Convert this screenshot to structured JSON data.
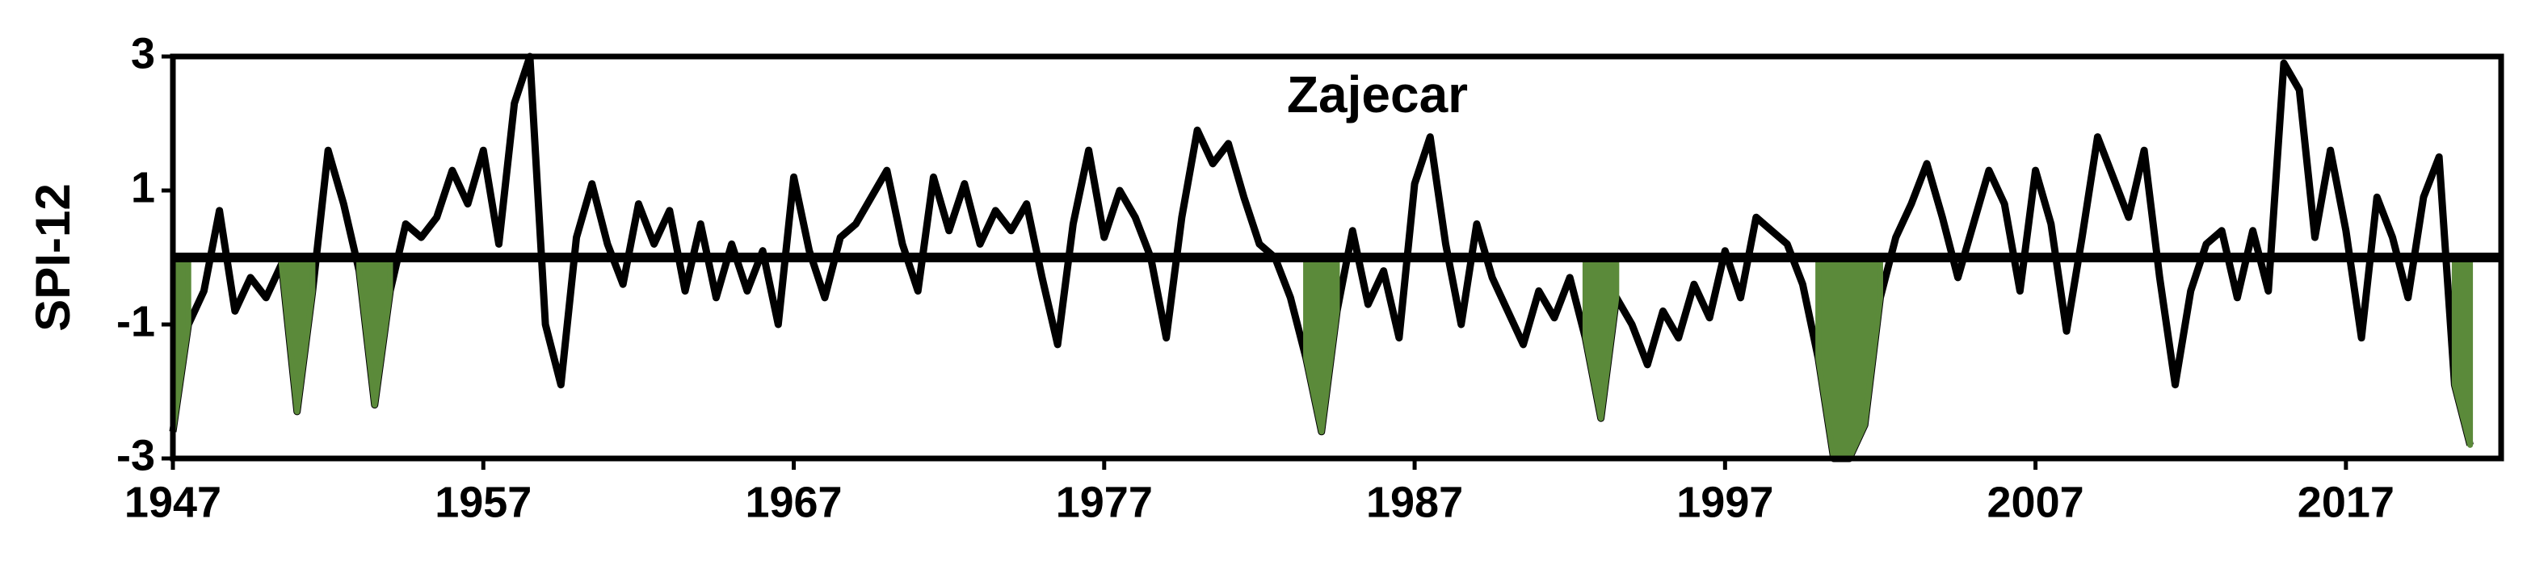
{
  "chart_data": {
    "type": "line",
    "title": "Zajecar",
    "ylabel": "SPI-12",
    "xlim": [
      1947,
      2022
    ],
    "xticks": [
      1947,
      1957,
      1967,
      1977,
      1987,
      1997,
      2007,
      2017
    ],
    "ylim": [
      -3,
      3
    ],
    "yticks": [
      -3,
      -1,
      1,
      3
    ],
    "hline": 0,
    "x": [
      1947,
      1947.5,
      1948,
      1948.5,
      1949,
      1949.5,
      1950,
      1950.5,
      1951,
      1951.5,
      1952,
      1952.5,
      1953,
      1953.5,
      1954,
      1954.5,
      1955,
      1955.5,
      1956,
      1956.5,
      1957,
      1957.5,
      1958,
      1958.5,
      1959,
      1959.5,
      1960,
      1960.5,
      1961,
      1961.5,
      1962,
      1962.5,
      1963,
      1963.5,
      1964,
      1964.5,
      1965,
      1965.5,
      1966,
      1966.5,
      1967,
      1967.5,
      1968,
      1968.5,
      1969,
      1969.5,
      1970,
      1970.5,
      1971,
      1971.5,
      1972,
      1972.5,
      1973,
      1973.5,
      1974,
      1974.5,
      1975,
      1975.5,
      1976,
      1976.5,
      1977,
      1977.5,
      1978,
      1978.5,
      1979,
      1979.5,
      1980,
      1980.5,
      1981,
      1981.5,
      1982,
      1982.5,
      1983,
      1983.5,
      1984,
      1984.5,
      1985,
      1985.5,
      1986,
      1986.5,
      1987,
      1987.5,
      1988,
      1988.5,
      1989,
      1989.5,
      1990,
      1990.5,
      1991,
      1991.5,
      1992,
      1992.5,
      1993,
      1993.5,
      1994,
      1994.5,
      1995,
      1995.5,
      1996,
      1996.5,
      1997,
      1997.5,
      1998,
      1998.5,
      1999,
      1999.5,
      2000,
      2000.5,
      2001,
      2001.5,
      2002,
      2002.5,
      2003,
      2003.5,
      2004,
      2004.5,
      2005,
      2005.5,
      2006,
      2006.5,
      2007,
      2007.5,
      2008,
      2008.5,
      2009,
      2009.5,
      2010,
      2010.5,
      2011,
      2011.5,
      2012,
      2012.5,
      2013,
      2013.5,
      2014,
      2014.5,
      2015,
      2015.5,
      2016,
      2016.5,
      2017,
      2017.5,
      2018,
      2018.5,
      2019,
      2019.5,
      2020,
      2020.5,
      2021
    ],
    "series": [
      {
        "color": "#000000",
        "values": [
          -2.6,
          -1.0,
          -0.5,
          0.7,
          -0.8,
          -0.3,
          -0.6,
          -0.1,
          -2.3,
          -0.5,
          1.6,
          0.8,
          -0.2,
          -2.2,
          -0.5,
          0.5,
          0.3,
          0.6,
          1.3,
          0.8,
          1.6,
          0.2,
          2.3,
          3.0,
          -1.0,
          -1.9,
          0.3,
          1.1,
          0.2,
          -0.4,
          0.8,
          0.2,
          0.7,
          -0.5,
          0.5,
          -0.6,
          0.2,
          -0.5,
          0.1,
          -1.0,
          1.2,
          0.1,
          -0.6,
          0.3,
          0.5,
          0.9,
          1.3,
          0.2,
          -0.5,
          1.2,
          0.4,
          1.1,
          0.2,
          0.7,
          0.4,
          0.8,
          -0.3,
          -1.3,
          0.5,
          1.6,
          0.3,
          1.0,
          0.6,
          0.0,
          -1.2,
          0.6,
          1.9,
          1.4,
          1.7,
          0.9,
          0.2,
          0.0,
          -0.6,
          -1.5,
          -2.6,
          -0.8,
          0.4,
          -0.7,
          -0.2,
          -1.2,
          1.1,
          1.8,
          0.2,
          -1.0,
          0.5,
          -0.3,
          -0.8,
          -1.3,
          -0.5,
          -0.9,
          -0.3,
          -1.2,
          -2.4,
          -0.6,
          -1.0,
          -1.6,
          -0.8,
          -1.2,
          -0.4,
          -0.9,
          0.1,
          -0.6,
          0.6,
          0.4,
          0.2,
          -0.4,
          -1.5,
          -3.0,
          -3.0,
          -2.5,
          -0.6,
          0.3,
          0.8,
          1.4,
          0.6,
          -0.3,
          0.5,
          1.3,
          0.8,
          -0.5,
          1.3,
          0.5,
          -1.1,
          0.3,
          1.8,
          1.2,
          0.6,
          1.6,
          -0.3,
          -1.9,
          -0.5,
          0.2,
          0.4,
          -0.6,
          0.4,
          -0.5,
          2.9,
          2.5,
          0.3,
          1.6,
          0.4,
          -1.2,
          0.9,
          0.3,
          -0.6,
          0.9,
          1.5,
          -1.9,
          -2.8
        ]
      },
      {
        "color": "#5b8a3a",
        "values": [
          -2.6,
          -1.0,
          null,
          null,
          null,
          null,
          null,
          -0.1,
          -2.3,
          -0.5,
          null,
          null,
          -0.2,
          -2.2,
          -0.5,
          null,
          null,
          null,
          null,
          null,
          null,
          null,
          null,
          null,
          null,
          null,
          null,
          null,
          null,
          null,
          null,
          null,
          null,
          null,
          null,
          null,
          null,
          null,
          null,
          null,
          null,
          null,
          null,
          null,
          null,
          null,
          null,
          null,
          null,
          null,
          null,
          null,
          null,
          null,
          null,
          null,
          null,
          null,
          null,
          null,
          null,
          null,
          null,
          null,
          null,
          null,
          null,
          null,
          null,
          null,
          null,
          null,
          null,
          -1.5,
          -2.6,
          -0.8,
          null,
          null,
          null,
          null,
          null,
          null,
          null,
          null,
          null,
          null,
          null,
          null,
          null,
          null,
          null,
          -1.2,
          -2.4,
          -0.6,
          null,
          null,
          null,
          null,
          null,
          null,
          null,
          null,
          null,
          null,
          null,
          null,
          -1.5,
          -3.0,
          -3.0,
          -2.5,
          -0.6,
          null,
          null,
          null,
          null,
          null,
          null,
          null,
          null,
          null,
          null,
          null,
          null,
          null,
          null,
          null,
          null,
          null,
          null,
          null,
          null,
          null,
          null,
          null,
          null,
          null,
          null,
          null,
          null,
          null,
          null,
          null,
          null,
          null,
          null,
          null,
          null,
          -1.9,
          -2.8
        ]
      }
    ]
  }
}
